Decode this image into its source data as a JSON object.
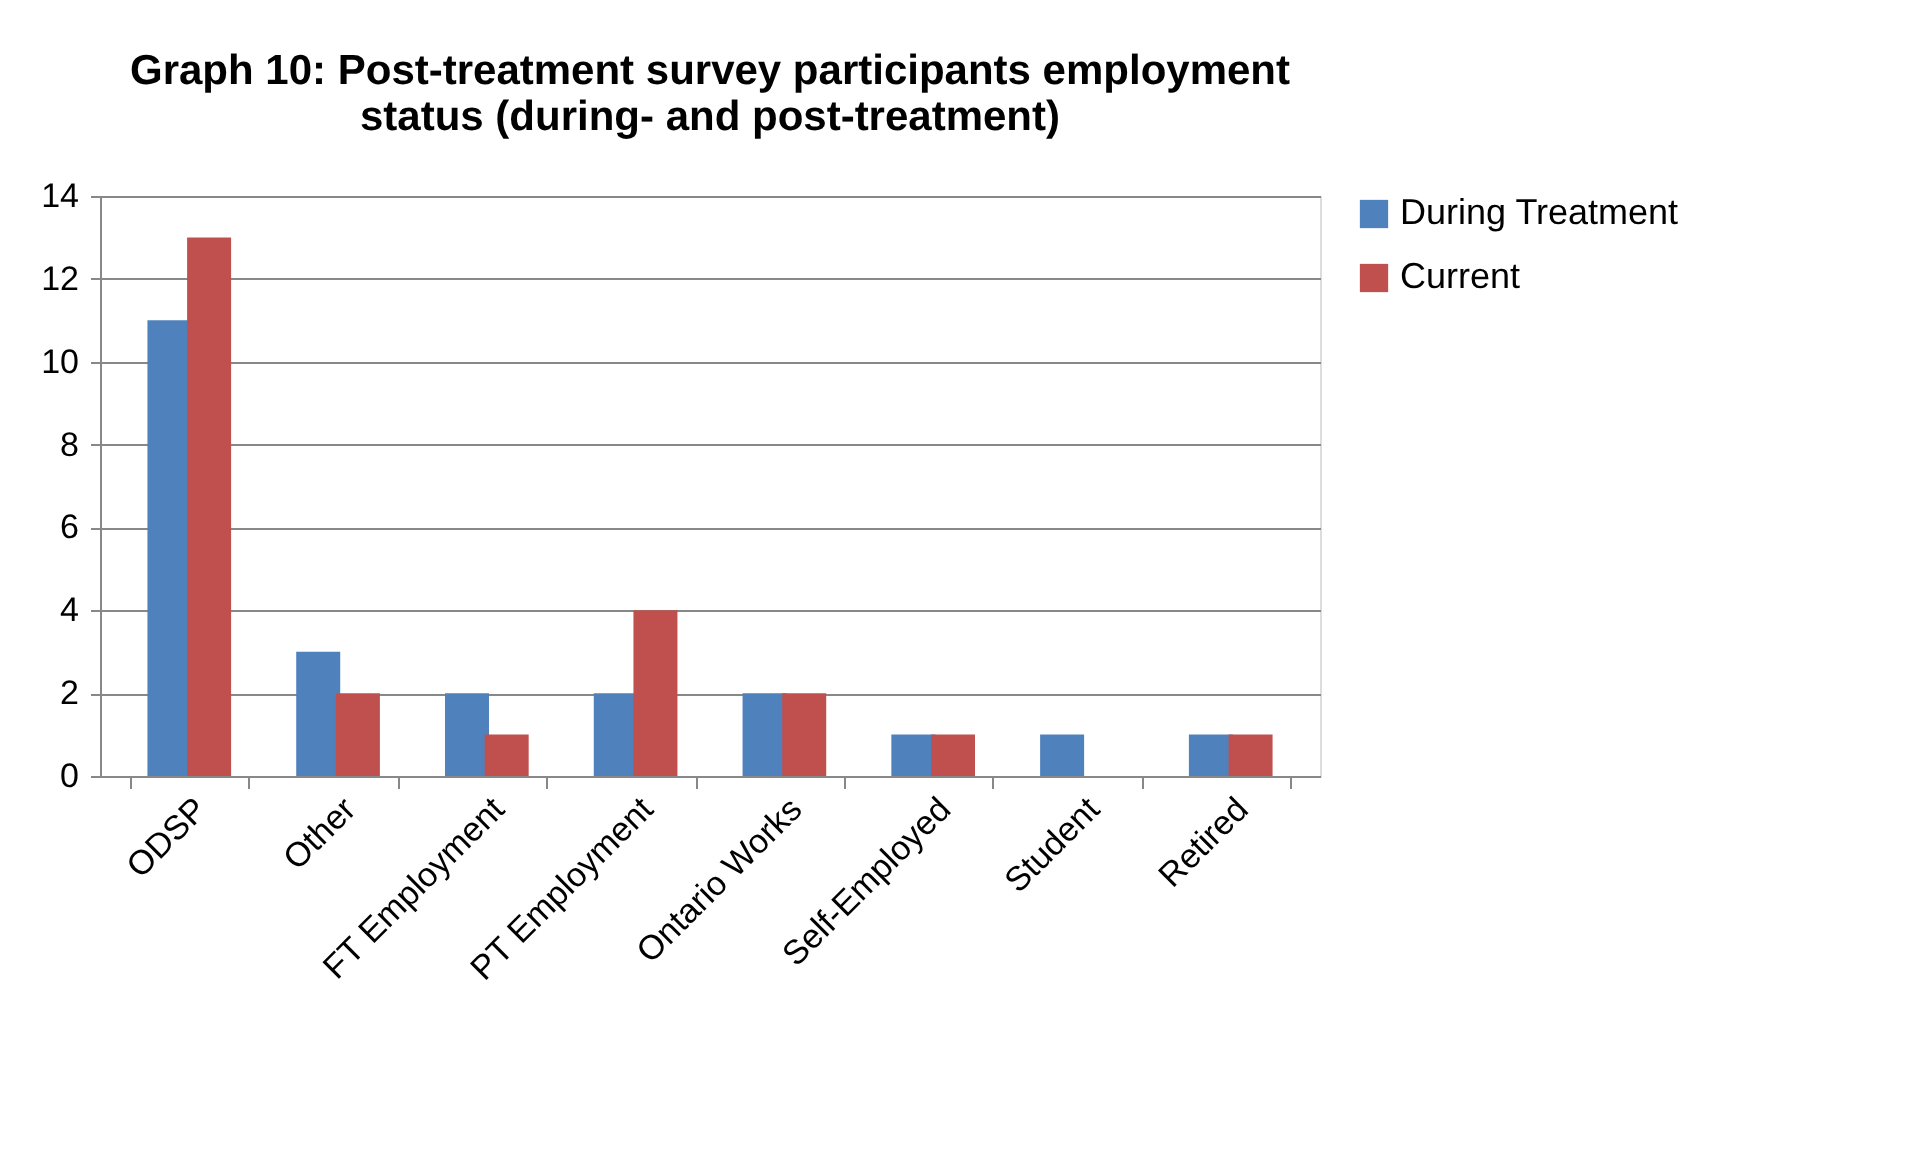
{
  "chart_data": {
    "type": "bar",
    "title": [
      "Graph 10: Post-treatment survey participants employment",
      "status (during- and post-treatment)"
    ],
    "categories": [
      "ODSP",
      "Other",
      "FT Employment",
      "PT Employment",
      "Ontario Works",
      "Self-Employed",
      "Student",
      "Retired"
    ],
    "series": [
      {
        "name": "During Treatment",
        "color": "#4f81bd",
        "values": [
          11,
          3,
          2,
          2,
          2,
          1,
          1,
          1
        ]
      },
      {
        "name": "Current",
        "color": "#c0504d",
        "values": [
          13,
          2,
          1,
          4,
          2,
          1,
          0,
          1
        ]
      }
    ],
    "ylim": [
      0,
      14
    ],
    "yticks": [
      0,
      2,
      4,
      6,
      8,
      10,
      12,
      14
    ],
    "grid": "y",
    "legend": "right"
  }
}
